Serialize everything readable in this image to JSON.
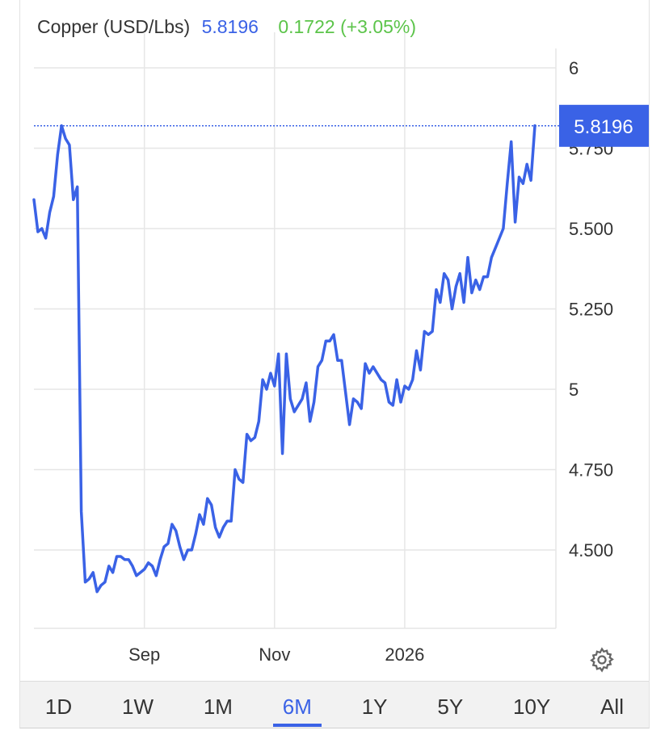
{
  "header": {
    "name": "Copper (USD/Lbs)",
    "price": "5.8196",
    "change": "0.1722 (+3.05%)"
  },
  "colors": {
    "line": "#3a62e6",
    "price": "#3a62e6",
    "change": "#5cc44a",
    "grid": "#e6e6e6"
  },
  "current_price_label": "5.8196",
  "tabs": [
    {
      "label": "1D",
      "active": false
    },
    {
      "label": "1W",
      "active": false
    },
    {
      "label": "1M",
      "active": false
    },
    {
      "label": "6M",
      "active": true
    },
    {
      "label": "1Y",
      "active": false
    },
    {
      "label": "5Y",
      "active": false
    },
    {
      "label": "10Y",
      "active": false
    },
    {
      "label": "All",
      "active": false
    }
  ],
  "settings_icon": "gear-icon",
  "chart_data": {
    "type": "line",
    "title": "Copper (USD/Lbs)",
    "xlabel": "",
    "ylabel": "",
    "ylim": [
      4.25,
      6.1
    ],
    "y_ticks": [
      {
        "value": 6,
        "label": "6"
      },
      {
        "value": 5.75,
        "label": "5.750"
      },
      {
        "value": 5.5,
        "label": "5.500"
      },
      {
        "value": 5.25,
        "label": "5.250"
      },
      {
        "value": 5,
        "label": "5"
      },
      {
        "value": 4.75,
        "label": "4.750"
      },
      {
        "value": 4.5,
        "label": "4.500"
      }
    ],
    "x_ticks": [
      {
        "index": 28,
        "label": "Sep"
      },
      {
        "index": 61,
        "label": "Nov"
      },
      {
        "index": 94,
        "label": "2026"
      }
    ],
    "grid": true,
    "series": [
      {
        "values": [
          5.59,
          5.49,
          5.5,
          5.47,
          5.55,
          5.6,
          5.73,
          5.82,
          5.78,
          5.76,
          5.59,
          5.63,
          4.62,
          4.4,
          4.41,
          4.43,
          4.37,
          4.39,
          4.4,
          4.45,
          4.43,
          4.48,
          4.48,
          4.47,
          4.47,
          4.45,
          4.42,
          4.43,
          4.44,
          4.46,
          4.45,
          4.42,
          4.47,
          4.51,
          4.52,
          4.58,
          4.56,
          4.51,
          4.47,
          4.5,
          4.5,
          4.55,
          4.61,
          4.58,
          4.66,
          4.64,
          4.57,
          4.54,
          4.57,
          4.59,
          4.59,
          4.75,
          4.72,
          4.71,
          4.86,
          4.84,
          4.85,
          4.9,
          5.03,
          5.0,
          5.05,
          5.01,
          5.11,
          4.8,
          5.11,
          4.97,
          4.93,
          4.95,
          4.97,
          5.02,
          4.9,
          4.96,
          5.07,
          5.09,
          5.15,
          5.15,
          5.17,
          5.09,
          5.09,
          4.99,
          4.89,
          4.97,
          4.96,
          4.94,
          5.08,
          5.05,
          5.07,
          5.05,
          5.03,
          5.02,
          4.96,
          4.95,
          5.03,
          4.96,
          5.01,
          5.0,
          5.03,
          5.12,
          5.06,
          5.18,
          5.17,
          5.18,
          5.31,
          5.27,
          5.36,
          5.34,
          5.25,
          5.32,
          5.36,
          5.27,
          5.41,
          5.3,
          5.34,
          5.31,
          5.35,
          5.35,
          5.41,
          5.44,
          5.47,
          5.5,
          5.64,
          5.77,
          5.52,
          5.66,
          5.64,
          5.7,
          5.65,
          5.82
        ]
      }
    ]
  }
}
